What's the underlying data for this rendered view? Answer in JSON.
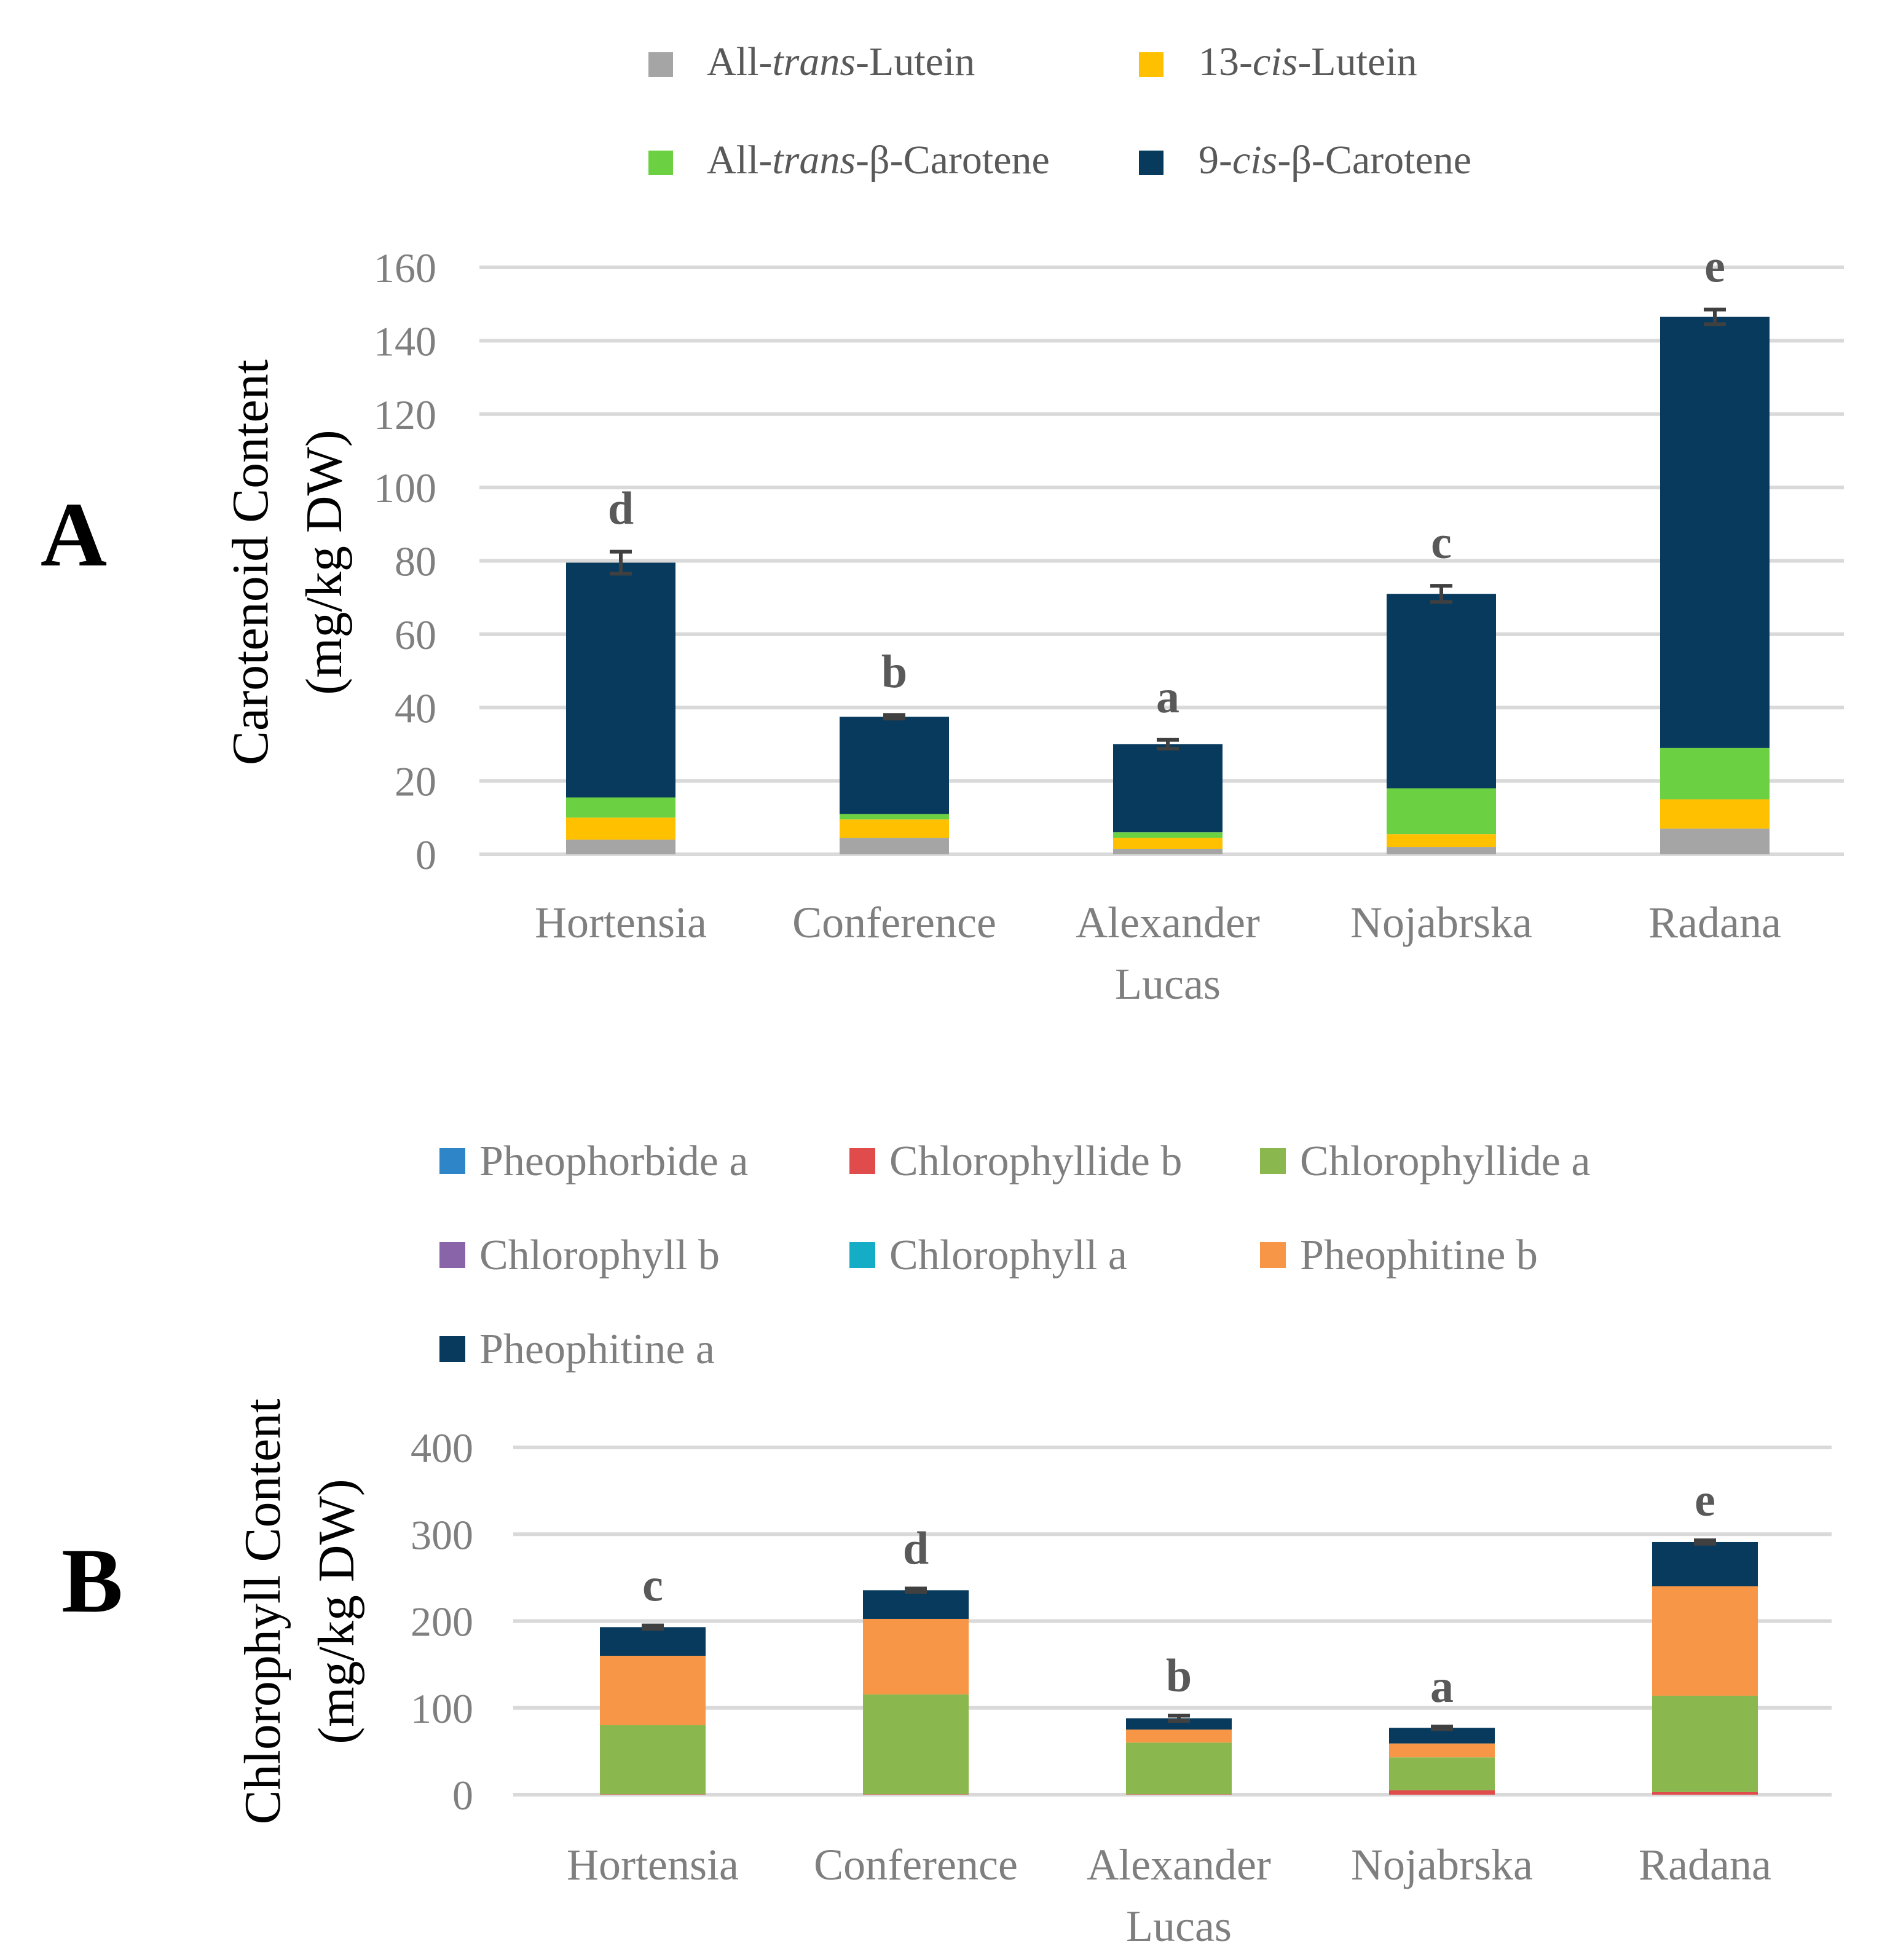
{
  "chart_data": [
    {
      "type": "bar",
      "stacked": true,
      "panel_label": "A",
      "ylabel_line1": "Carotenoid Content",
      "ylabel_line2": "(mg/kg DW)",
      "categories": [
        "Hortensia",
        "Conference",
        "Alexander Lucas",
        "Nojabrska",
        "Radana"
      ],
      "category_lines": [
        [
          "Hortensia"
        ],
        [
          "Conference"
        ],
        [
          "Alexander",
          "Lucas"
        ],
        [
          "Nojabrska"
        ],
        [
          "Radana"
        ]
      ],
      "ylim": [
        0,
        160
      ],
      "yticks": [
        0,
        20,
        40,
        60,
        80,
        100,
        120,
        140,
        160
      ],
      "grid": true,
      "legend": [
        {
          "pre": "All-",
          "it": "trans",
          "post": "-Lutein",
          "color": "#a5a5a5"
        },
        {
          "pre": "13-",
          "it": "cis",
          "post": "-Lutein",
          "color": "#ffc000"
        },
        {
          "pre": "All-",
          "it": "trans",
          "post": "-β-Carotene",
          "color": "#6bd142"
        },
        {
          "pre": "9-",
          "it": "cis",
          "post": "-β-Carotene",
          "color": "#073a5c"
        }
      ],
      "series": [
        {
          "name": "All-trans-Lutein",
          "color": "#a5a5a5",
          "values": [
            4,
            4.5,
            1.5,
            2,
            7
          ]
        },
        {
          "name": "13-cis-Lutein",
          "color": "#ffc000",
          "values": [
            6,
            5,
            3,
            3.5,
            8
          ]
        },
        {
          "name": "All-trans-β-Carotene",
          "color": "#6bd142",
          "values": [
            5.5,
            1.5,
            1.5,
            12.5,
            14
          ]
        },
        {
          "name": "9-cis-β-Carotene",
          "color": "#073a5c",
          "values": [
            64,
            26.5,
            24,
            53,
            117.5
          ]
        }
      ],
      "totals": [
        79.5,
        37.5,
        30,
        71,
        146.5
      ],
      "errors": [
        3.0,
        0.5,
        1.2,
        2.2,
        2.0
      ],
      "significance": [
        "d",
        "b",
        "a",
        "c",
        "e"
      ]
    },
    {
      "type": "bar",
      "stacked": true,
      "panel_label": "B",
      "ylabel_line1": "Chlorophyll Content",
      "ylabel_line2": "(mg/kg DW)",
      "categories": [
        "Hortensia",
        "Conference",
        "Alexander Lucas",
        "Nojabrska",
        "Radana"
      ],
      "category_lines": [
        [
          "Hortensia"
        ],
        [
          "Conference"
        ],
        [
          "Alexander",
          "Lucas"
        ],
        [
          "Nojabrska"
        ],
        [
          "Radana"
        ]
      ],
      "ylim": [
        0,
        400
      ],
      "yticks": [
        0,
        100,
        200,
        300,
        400
      ],
      "grid": true,
      "legend": [
        {
          "label": "Pheophorbide a",
          "color": "#2e86c8"
        },
        {
          "label": "Chlorophyllide b",
          "color": "#e04b4b"
        },
        {
          "label": "Chlorophyllide a",
          "color": "#8ab84e"
        },
        {
          "label": "Chlorophyll b",
          "color": "#8a64a8"
        },
        {
          "label": "Chlorophyll a",
          "color": "#15adc6"
        },
        {
          "label": "Pheophitine b",
          "color": "#f79646"
        },
        {
          "label": "Pheophitine a",
          "color": "#073a5c"
        }
      ],
      "series": [
        {
          "name": "Pheophorbide a",
          "color": "#2e86c8",
          "values": [
            0,
            0,
            0,
            0,
            0
          ]
        },
        {
          "name": "Chlorophyllide b",
          "color": "#e04b4b",
          "values": [
            0.5,
            0.5,
            0.5,
            5,
            3
          ]
        },
        {
          "name": "Chlorophyllide a",
          "color": "#8ab84e",
          "values": [
            79.5,
            115,
            59.5,
            38,
            111
          ]
        },
        {
          "name": "Chlorophyll b",
          "color": "#8a64a8",
          "values": [
            0,
            0,
            0,
            0,
            0
          ]
        },
        {
          "name": "Chlorophyll a",
          "color": "#15adc6",
          "values": [
            0,
            0,
            0,
            0,
            0
          ]
        },
        {
          "name": "Pheophitine b",
          "color": "#f79646",
          "values": [
            80,
            87,
            15,
            16,
            126
          ]
        },
        {
          "name": "Pheophitine a",
          "color": "#073a5c",
          "values": [
            33,
            33,
            13,
            18,
            51
          ]
        }
      ],
      "totals": [
        193,
        235.5,
        88,
        77,
        291
      ],
      "errors": [
        2.0,
        2.0,
        3.0,
        1.5,
        2.0
      ],
      "significance": [
        "c",
        "d",
        "b",
        "a",
        "e"
      ]
    }
  ]
}
